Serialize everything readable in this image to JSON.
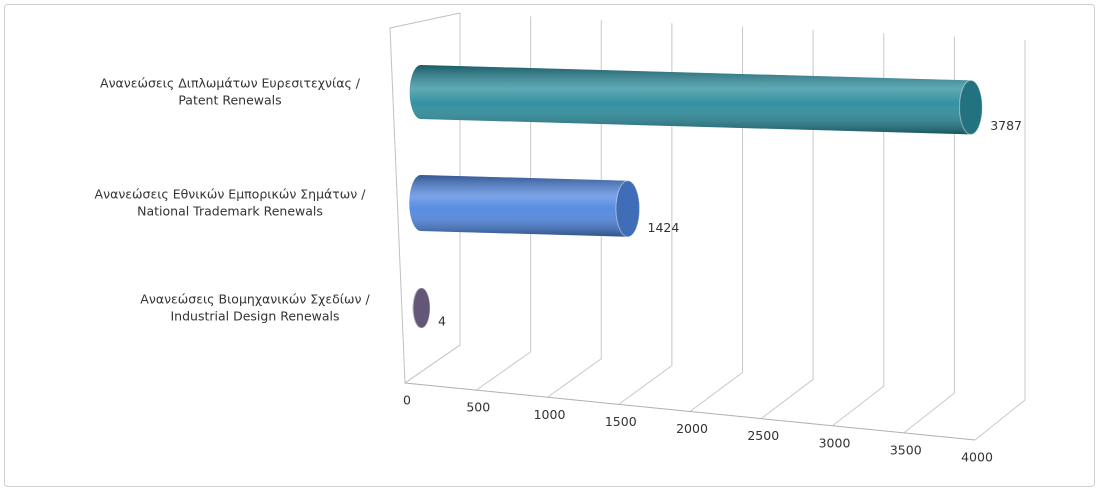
{
  "chart_data": {
    "type": "bar3d",
    "categories": [
      [
        "Ανανεώσεις Διπλωμάτων Ευρεσιτεχνίας /",
        "Patent Renewals"
      ],
      [
        "Ανανεώσεις Εθνικών Εμπορικών Σημάτων /",
        "National Trademark Renewals"
      ],
      [
        "Ανανεώσεις Βιομηχανικών Σχεδίων  /",
        "Industrial Design Renewals"
      ]
    ],
    "values": [
      3787,
      1424,
      4
    ],
    "colors": [
      "#2a8c9c",
      "#4f86e0",
      "#7b6a92"
    ],
    "xlim": [
      0,
      4000
    ],
    "xticks": [
      0,
      500,
      1000,
      1500,
      2000,
      2500,
      3000,
      3500,
      4000
    ],
    "grid": true
  }
}
